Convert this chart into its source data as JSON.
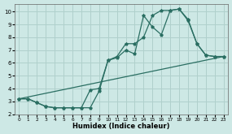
{
  "xlabel": "Humidex (Indice chaleur)",
  "ylabel": "",
  "bg_color": "#cde8e5",
  "grid_color": "#b0d0cc",
  "line_color": "#2a6e62",
  "xlim": [
    -0.5,
    23.5
  ],
  "ylim": [
    2.0,
    10.6
  ],
  "xticks": [
    0,
    1,
    2,
    3,
    4,
    5,
    6,
    7,
    8,
    9,
    10,
    11,
    12,
    13,
    14,
    15,
    16,
    17,
    18,
    19,
    20,
    21,
    22,
    23
  ],
  "yticks": [
    2,
    3,
    4,
    5,
    6,
    7,
    8,
    9,
    10
  ],
  "line1_x": [
    0,
    1,
    2,
    3,
    4,
    5,
    6,
    7,
    8,
    9,
    10,
    11,
    12,
    13,
    14,
    15,
    16,
    17,
    18,
    19,
    20,
    21,
    22,
    23
  ],
  "line1_y": [
    3.2,
    3.2,
    2.9,
    2.6,
    2.5,
    2.5,
    2.5,
    2.5,
    2.5,
    3.8,
    6.2,
    6.4,
    7.0,
    6.7,
    9.7,
    8.8,
    8.2,
    10.1,
    10.2,
    9.4,
    7.5,
    6.6,
    6.5,
    6.5
  ],
  "line2_x": [
    0,
    1,
    2,
    3,
    4,
    5,
    6,
    7,
    8,
    9,
    10,
    11,
    12,
    13,
    14,
    15,
    16,
    17,
    18,
    19,
    20,
    21,
    22,
    23
  ],
  "line2_y": [
    3.2,
    3.2,
    2.9,
    2.6,
    2.5,
    2.5,
    2.5,
    2.5,
    3.9,
    4.0,
    6.2,
    6.5,
    7.5,
    7.5,
    8.0,
    9.7,
    10.1,
    10.1,
    10.2,
    9.3,
    7.5,
    6.6,
    6.5,
    6.5
  ],
  "line3_x": [
    0,
    23
  ],
  "line3_y": [
    3.2,
    6.5
  ]
}
